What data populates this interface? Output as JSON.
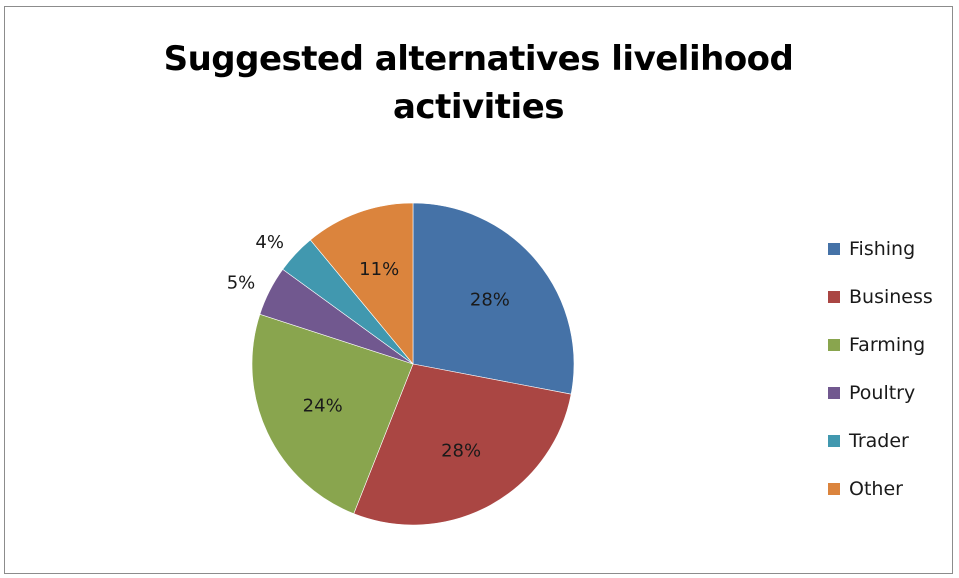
{
  "chart_data": {
    "type": "pie",
    "title": "Suggested alternatives livelihood activities",
    "title_lines": [
      "Suggested alternatives livelihood",
      "activities"
    ],
    "categories": [
      "Fishing",
      "Business",
      "Farming",
      "Poultry",
      "Trader",
      "Other"
    ],
    "values": [
      28,
      28,
      24,
      5,
      4,
      11
    ],
    "labels": [
      "28%",
      "28%",
      "24%",
      "5%",
      "4%",
      "11%"
    ],
    "colors": [
      "#4572A7",
      "#AA4643",
      "#89A54E",
      "#71588F",
      "#4198AF",
      "#DB843D"
    ],
    "start_angle": "12 o'clock",
    "direction": "clockwise",
    "legend_position": "right"
  }
}
